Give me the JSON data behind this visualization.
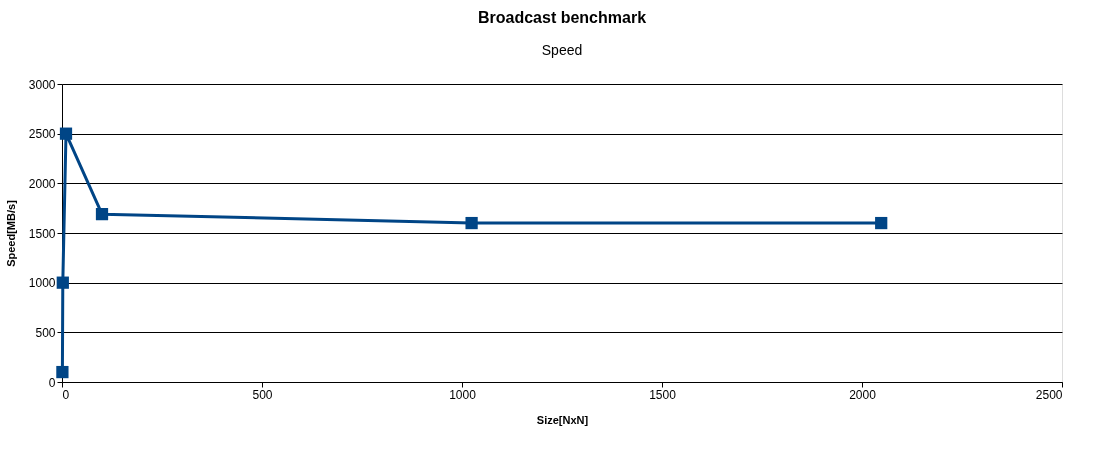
{
  "chart_data": {
    "type": "line",
    "title": "Broadcast benchmark",
    "subtitle": "Speed",
    "xlabel": "Size[NxN]",
    "ylabel": "Speed[MB/s]",
    "x": [
      1,
      2,
      10,
      100,
      1024,
      2048
    ],
    "series": [
      {
        "color": "#004586",
        "values": [
          100,
          1000,
          2500,
          1690,
          1600,
          1600
        ]
      }
    ],
    "xlim": [
      0,
      2500
    ],
    "xticks": [
      0,
      500,
      1000,
      1500,
      2000,
      2500
    ],
    "ylim": [
      0,
      3000
    ],
    "yticks": [
      0,
      500,
      1000,
      1500,
      2000,
      2500,
      3000
    ],
    "grid": "y",
    "marker": "square",
    "line_style": "solid",
    "legend": false
  }
}
